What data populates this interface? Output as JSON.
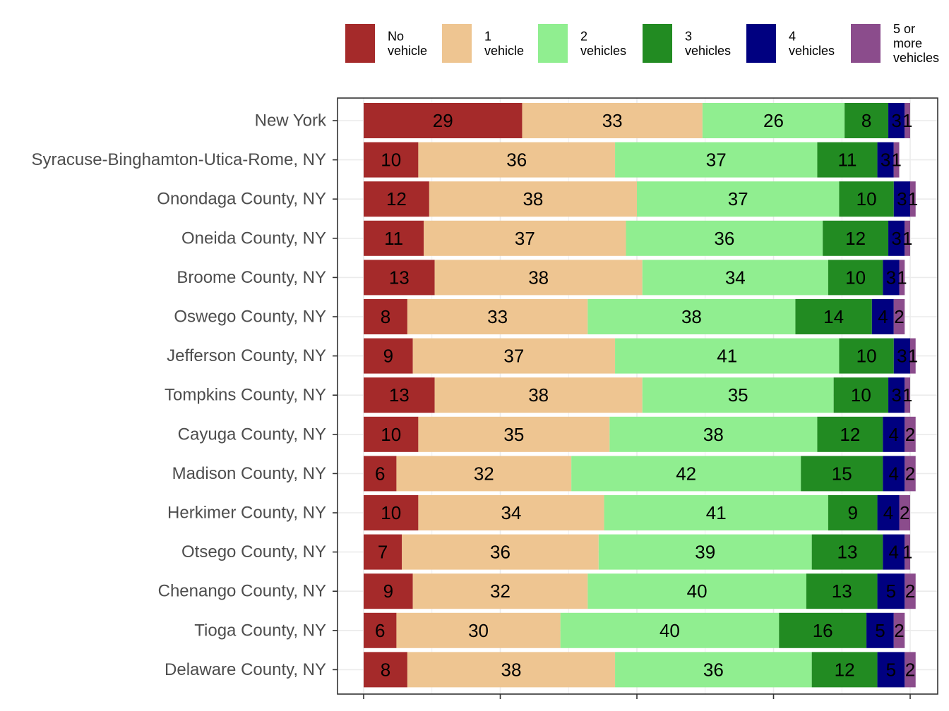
{
  "chart_data": {
    "type": "bar",
    "orientation": "horizontal",
    "stacked": true,
    "title": "",
    "xlabel": "",
    "ylabel": "",
    "xlim": [
      0,
      100
    ],
    "grid": true,
    "legend_position": "top",
    "categories": [
      "New York",
      "Syracuse-Binghamton-Utica-Rome, NY",
      "Onondaga County, NY",
      "Oneida County, NY",
      "Broome County, NY",
      "Oswego County, NY",
      "Jefferson County, NY",
      "Tompkins County, NY",
      "Cayuga County, NY",
      "Madison County, NY",
      "Herkimer County, NY",
      "Otsego County, NY",
      "Chenango County, NY",
      "Tioga County, NY",
      "Delaware County, NY"
    ],
    "series": [
      {
        "name": "No vehicle",
        "legend_lines": [
          "No",
          "vehicle"
        ],
        "color": "#A52A2A",
        "values": [
          29,
          10,
          12,
          11,
          13,
          8,
          9,
          13,
          10,
          6,
          10,
          7,
          9,
          6,
          8
        ]
      },
      {
        "name": "1 vehicle",
        "legend_lines": [
          "1",
          "vehicle"
        ],
        "color": "#EEC591",
        "values": [
          33,
          36,
          38,
          37,
          38,
          33,
          37,
          38,
          35,
          32,
          34,
          36,
          32,
          30,
          38
        ]
      },
      {
        "name": "2 vehicles",
        "legend_lines": [
          "2",
          "vehicles"
        ],
        "color": "#90EE90",
        "values": [
          26,
          37,
          37,
          36,
          34,
          38,
          41,
          35,
          38,
          42,
          41,
          39,
          40,
          40,
          36
        ]
      },
      {
        "name": "3 vehicles",
        "legend_lines": [
          "3",
          "vehicles"
        ],
        "color": "#228B22",
        "values": [
          8,
          11,
          10,
          12,
          10,
          14,
          10,
          10,
          12,
          15,
          9,
          13,
          13,
          16,
          12
        ]
      },
      {
        "name": "4 vehicles",
        "legend_lines": [
          "4",
          "vehicles"
        ],
        "color": "#000080",
        "values": [
          3,
          3,
          3,
          3,
          3,
          4,
          3,
          3,
          4,
          4,
          4,
          4,
          5,
          5,
          5
        ]
      },
      {
        "name": "5 or more vehicles",
        "legend_lines": [
          "5 or",
          "more",
          "vehicles"
        ],
        "color": "#8B4C8C",
        "values": [
          1,
          1,
          1,
          1,
          1,
          2,
          1,
          1,
          2,
          2,
          2,
          1,
          2,
          2,
          2
        ]
      }
    ]
  }
}
